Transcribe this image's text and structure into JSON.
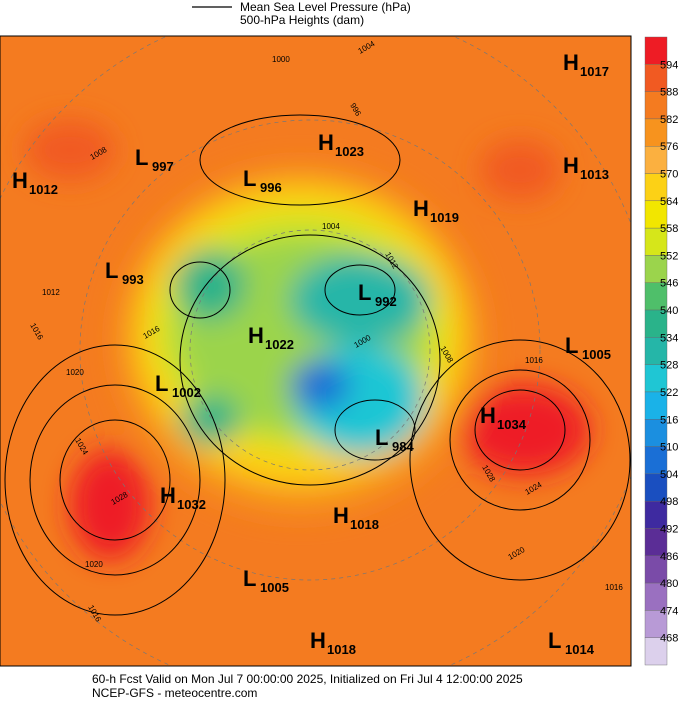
{
  "header": {
    "lines": [
      "Mean Sea Level Pressure (hPa)",
      "500-hPa Heights (dam)"
    ]
  },
  "centers": [
    {
      "letter": "H",
      "value": 1017
    },
    {
      "letter": "L",
      "value": 997
    },
    {
      "letter": "H",
      "value": 1012
    },
    {
      "letter": "H",
      "value": 1023
    },
    {
      "letter": "H",
      "value": 1013
    },
    {
      "letter": "L",
      "value": 996
    },
    {
      "letter": "H",
      "value": 1019
    },
    {
      "letter": "L",
      "value": 993
    },
    {
      "letter": "L",
      "value": 992
    },
    {
      "letter": "H",
      "value": 1022
    },
    {
      "letter": "L",
      "value": 1005
    },
    {
      "letter": "L",
      "value": 1002
    },
    {
      "letter": "H",
      "value": 1034
    },
    {
      "letter": "L",
      "value": 984
    },
    {
      "letter": "H",
      "value": 1032
    },
    {
      "letter": "H",
      "value": 1018
    },
    {
      "letter": "L",
      "value": 1005
    },
    {
      "letter": "H",
      "value": 1018
    },
    {
      "letter": "L",
      "value": 1014
    }
  ],
  "isobar_labels": [
    1004,
    1000,
    996,
    1008,
    1012,
    1016,
    1016,
    1020,
    1024,
    1028,
    1020,
    1016,
    1020,
    1016,
    1028,
    1024,
    1016,
    1012,
    1000,
    1004,
    1008
  ],
  "colorbar": {
    "ticks": [
      594,
      588,
      582,
      576,
      570,
      564,
      558,
      552,
      546,
      540,
      534,
      528,
      522,
      516,
      510,
      504,
      498,
      492,
      486,
      480,
      474,
      468
    ]
  },
  "footer": {
    "lines": [
      "60-h Fcst Valid on Mon Jul  7 00:00:00 2025, Initialized on Fri Jul  4 12:00:00 2025",
      "NCEP-GFS  -  meteocentre.com"
    ]
  }
}
